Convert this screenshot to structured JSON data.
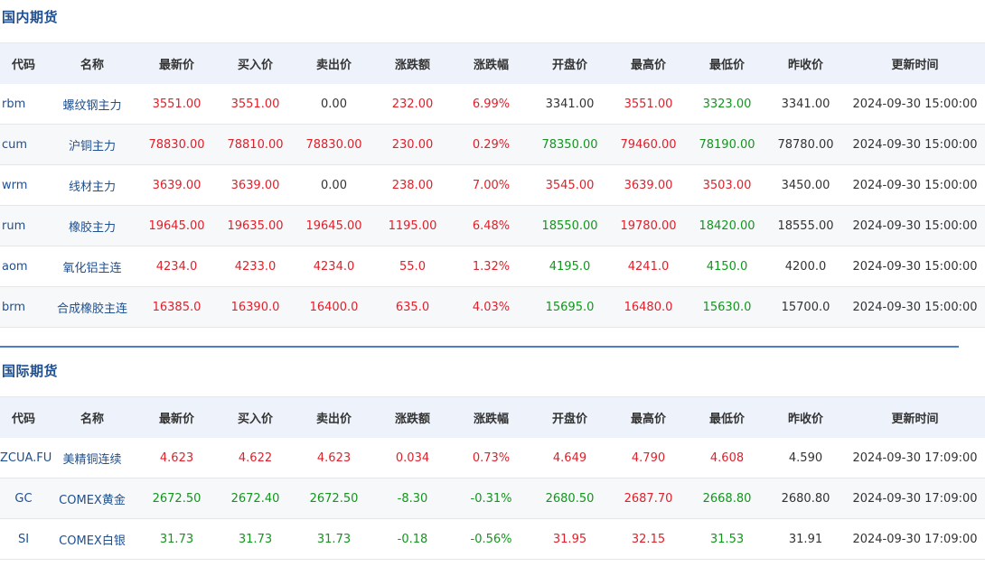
{
  "domestic": {
    "title": "国内期货",
    "headers": [
      "代码",
      "名称",
      "最新价",
      "买入价",
      "卖出价",
      "涨跌额",
      "涨跌幅",
      "开盘价",
      "最高价",
      "最低价",
      "昨收价",
      "更新时间"
    ],
    "rows": [
      {
        "code": "rbm",
        "name": "螺纹钢主力",
        "cells": [
          {
            "v": "3551.00",
            "c": "up"
          },
          {
            "v": "3551.00",
            "c": "up"
          },
          {
            "v": "0.00",
            "c": "neutral"
          },
          {
            "v": "232.00",
            "c": "up"
          },
          {
            "v": "6.99%",
            "c": "up"
          },
          {
            "v": "3341.00",
            "c": "neutral"
          },
          {
            "v": "3551.00",
            "c": "up"
          },
          {
            "v": "3323.00",
            "c": "down"
          },
          {
            "v": "3341.00",
            "c": "neutral"
          },
          {
            "v": "2024-09-30 15:00:00",
            "c": "neutral"
          }
        ]
      },
      {
        "code": "cum",
        "name": "沪铜主力",
        "cells": [
          {
            "v": "78830.00",
            "c": "up"
          },
          {
            "v": "78810.00",
            "c": "up"
          },
          {
            "v": "78830.00",
            "c": "up"
          },
          {
            "v": "230.00",
            "c": "up"
          },
          {
            "v": "0.29%",
            "c": "up"
          },
          {
            "v": "78350.00",
            "c": "down"
          },
          {
            "v": "79460.00",
            "c": "up"
          },
          {
            "v": "78190.00",
            "c": "down"
          },
          {
            "v": "78780.00",
            "c": "neutral"
          },
          {
            "v": "2024-09-30 15:00:00",
            "c": "neutral"
          }
        ]
      },
      {
        "code": "wrm",
        "name": "线材主力",
        "cells": [
          {
            "v": "3639.00",
            "c": "up"
          },
          {
            "v": "3639.00",
            "c": "up"
          },
          {
            "v": "0.00",
            "c": "neutral"
          },
          {
            "v": "238.00",
            "c": "up"
          },
          {
            "v": "7.00%",
            "c": "up"
          },
          {
            "v": "3545.00",
            "c": "up"
          },
          {
            "v": "3639.00",
            "c": "up"
          },
          {
            "v": "3503.00",
            "c": "up"
          },
          {
            "v": "3450.00",
            "c": "neutral"
          },
          {
            "v": "2024-09-30 15:00:00",
            "c": "neutral"
          }
        ]
      },
      {
        "code": "rum",
        "name": "橡胶主力",
        "cells": [
          {
            "v": "19645.00",
            "c": "up"
          },
          {
            "v": "19635.00",
            "c": "up"
          },
          {
            "v": "19645.00",
            "c": "up"
          },
          {
            "v": "1195.00",
            "c": "up"
          },
          {
            "v": "6.48%",
            "c": "up"
          },
          {
            "v": "18550.00",
            "c": "down"
          },
          {
            "v": "19780.00",
            "c": "up"
          },
          {
            "v": "18420.00",
            "c": "down"
          },
          {
            "v": "18555.00",
            "c": "neutral"
          },
          {
            "v": "2024-09-30 15:00:00",
            "c": "neutral"
          }
        ]
      },
      {
        "code": "aom",
        "name": "氧化铝主连",
        "cells": [
          {
            "v": "4234.0",
            "c": "up"
          },
          {
            "v": "4233.0",
            "c": "up"
          },
          {
            "v": "4234.0",
            "c": "up"
          },
          {
            "v": "55.0",
            "c": "up"
          },
          {
            "v": "1.32%",
            "c": "up"
          },
          {
            "v": "4195.0",
            "c": "down"
          },
          {
            "v": "4241.0",
            "c": "up"
          },
          {
            "v": "4150.0",
            "c": "down"
          },
          {
            "v": "4200.0",
            "c": "neutral"
          },
          {
            "v": "2024-09-30 15:00:00",
            "c": "neutral"
          }
        ]
      },
      {
        "code": "brm",
        "name": "合成橡胶主连",
        "cells": [
          {
            "v": "16385.0",
            "c": "up"
          },
          {
            "v": "16390.0",
            "c": "up"
          },
          {
            "v": "16400.0",
            "c": "up"
          },
          {
            "v": "635.0",
            "c": "up"
          },
          {
            "v": "4.03%",
            "c": "up"
          },
          {
            "v": "15695.0",
            "c": "down"
          },
          {
            "v": "16480.0",
            "c": "up"
          },
          {
            "v": "15630.0",
            "c": "down"
          },
          {
            "v": "15700.0",
            "c": "neutral"
          },
          {
            "v": "2024-09-30 15:00:00",
            "c": "neutral"
          }
        ]
      }
    ]
  },
  "international": {
    "title": "国际期货",
    "headers": [
      "代码",
      "名称",
      "最新价",
      "买入价",
      "卖出价",
      "涨跌额",
      "涨跌幅",
      "开盘价",
      "最高价",
      "最低价",
      "昨收价",
      "更新时间"
    ],
    "rows": [
      {
        "code": "ZCUA.FU",
        "name": "美精铜连续",
        "cells": [
          {
            "v": "4.623",
            "c": "up"
          },
          {
            "v": "4.622",
            "c": "up"
          },
          {
            "v": "4.623",
            "c": "up"
          },
          {
            "v": "0.034",
            "c": "up"
          },
          {
            "v": "0.73%",
            "c": "up"
          },
          {
            "v": "4.649",
            "c": "up"
          },
          {
            "v": "4.790",
            "c": "up"
          },
          {
            "v": "4.608",
            "c": "up"
          },
          {
            "v": "4.590",
            "c": "neutral"
          },
          {
            "v": "2024-09-30 17:09:00",
            "c": "neutral"
          }
        ]
      },
      {
        "code": "GC",
        "name": "COMEX黄金",
        "cells": [
          {
            "v": "2672.50",
            "c": "down"
          },
          {
            "v": "2672.40",
            "c": "down"
          },
          {
            "v": "2672.50",
            "c": "down"
          },
          {
            "v": "-8.30",
            "c": "down"
          },
          {
            "v": "-0.31%",
            "c": "down"
          },
          {
            "v": "2680.50",
            "c": "down"
          },
          {
            "v": "2687.70",
            "c": "up"
          },
          {
            "v": "2668.80",
            "c": "down"
          },
          {
            "v": "2680.80",
            "c": "neutral"
          },
          {
            "v": "2024-09-30 17:09:00",
            "c": "neutral"
          }
        ]
      },
      {
        "code": "SI",
        "name": "COMEX白银",
        "cells": [
          {
            "v": "31.73",
            "c": "down"
          },
          {
            "v": "31.73",
            "c": "down"
          },
          {
            "v": "31.73",
            "c": "down"
          },
          {
            "v": "-0.18",
            "c": "down"
          },
          {
            "v": "-0.56%",
            "c": "down"
          },
          {
            "v": "31.95",
            "c": "up"
          },
          {
            "v": "32.15",
            "c": "up"
          },
          {
            "v": "31.53",
            "c": "down"
          },
          {
            "v": "31.91",
            "c": "neutral"
          },
          {
            "v": "2024-09-30 17:09:00",
            "c": "neutral"
          }
        ]
      }
    ]
  },
  "colors": {
    "up": "#e0202a",
    "down": "#13951e",
    "title": "#1f4f8f",
    "header_bg": "#eef3fb",
    "divider": "#4a7fc8"
  }
}
